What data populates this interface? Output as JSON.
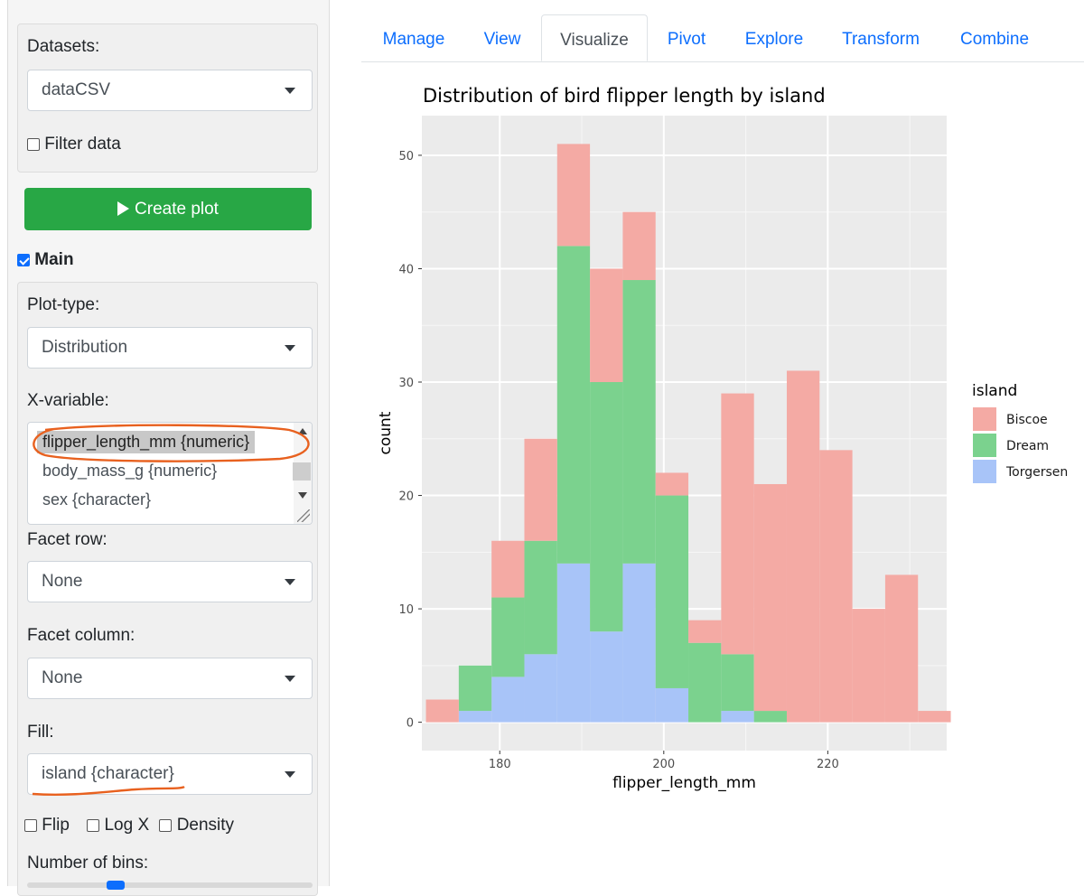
{
  "sidebar": {
    "datasets_label": "Datasets:",
    "dataset_value": "dataCSV",
    "filter_label": "Filter data",
    "create_plot_label": "Create plot",
    "main_label": "Main",
    "plot_type_label": "Plot-type:",
    "plot_type_value": "Distribution",
    "x_variable_label": "X-variable:",
    "x_variable_options": [
      {
        "label": "flipper_length_mm {numeric}",
        "selected": true
      },
      {
        "label": "body_mass_g {numeric}",
        "selected": false
      },
      {
        "label": "sex {character}",
        "selected": false
      }
    ],
    "facet_row_label": "Facet row:",
    "facet_row_value": "None",
    "facet_column_label": "Facet column:",
    "facet_column_value": "None",
    "fill_label": "Fill:",
    "fill_value": "island {character}",
    "flip_label": "Flip",
    "log_x_label": "Log X",
    "density_label": "Density",
    "bins_label": "Number of bins:"
  },
  "tabs": [
    {
      "label": "Manage",
      "active": false
    },
    {
      "label": "View",
      "active": false
    },
    {
      "label": "Visualize",
      "active": true
    },
    {
      "label": "Pivot",
      "active": false
    },
    {
      "label": "Explore",
      "active": false
    },
    {
      "label": "Transform",
      "active": false
    },
    {
      "label": "Combine",
      "active": false
    }
  ],
  "colors": {
    "accent": "#0d6efd",
    "create_button": "#28a745",
    "annotation": "#e8611f",
    "Biscoe": "#f4aaa4",
    "Dream": "#7bd28e",
    "Torgersen": "#a8c4f8",
    "panel": "#ebebeb"
  },
  "chart_data": {
    "type": "bar",
    "stacked": true,
    "title": "Distribution of bird flipper length by island",
    "xlabel": "flipper_length_mm",
    "ylabel": "count",
    "xlim": [
      170.5,
      234.5
    ],
    "ylim": [
      -2.5,
      53.5
    ],
    "xticks": [
      180,
      200,
      220
    ],
    "yticks": [
      0,
      10,
      20,
      30,
      40,
      50
    ],
    "legend_title": "island",
    "legend_position": "right",
    "bin_edges": [
      171,
      175,
      179,
      183,
      187,
      191,
      195,
      199,
      203,
      207,
      211,
      215,
      219,
      223,
      227,
      231,
      235
    ],
    "series": [
      {
        "name": "Torgersen",
        "values": [
          0,
          1,
          4,
          6,
          14,
          8,
          14,
          3,
          0,
          1,
          0,
          0,
          0,
          0,
          0,
          0
        ]
      },
      {
        "name": "Dream",
        "values": [
          0,
          4,
          7,
          10,
          28,
          22,
          25,
          17,
          7,
          5,
          1,
          0,
          0,
          0,
          0,
          0
        ]
      },
      {
        "name": "Biscoe",
        "values": [
          2,
          0,
          5,
          9,
          9,
          10,
          6,
          2,
          2,
          23,
          20,
          31,
          24,
          10,
          13,
          1
        ]
      }
    ]
  }
}
